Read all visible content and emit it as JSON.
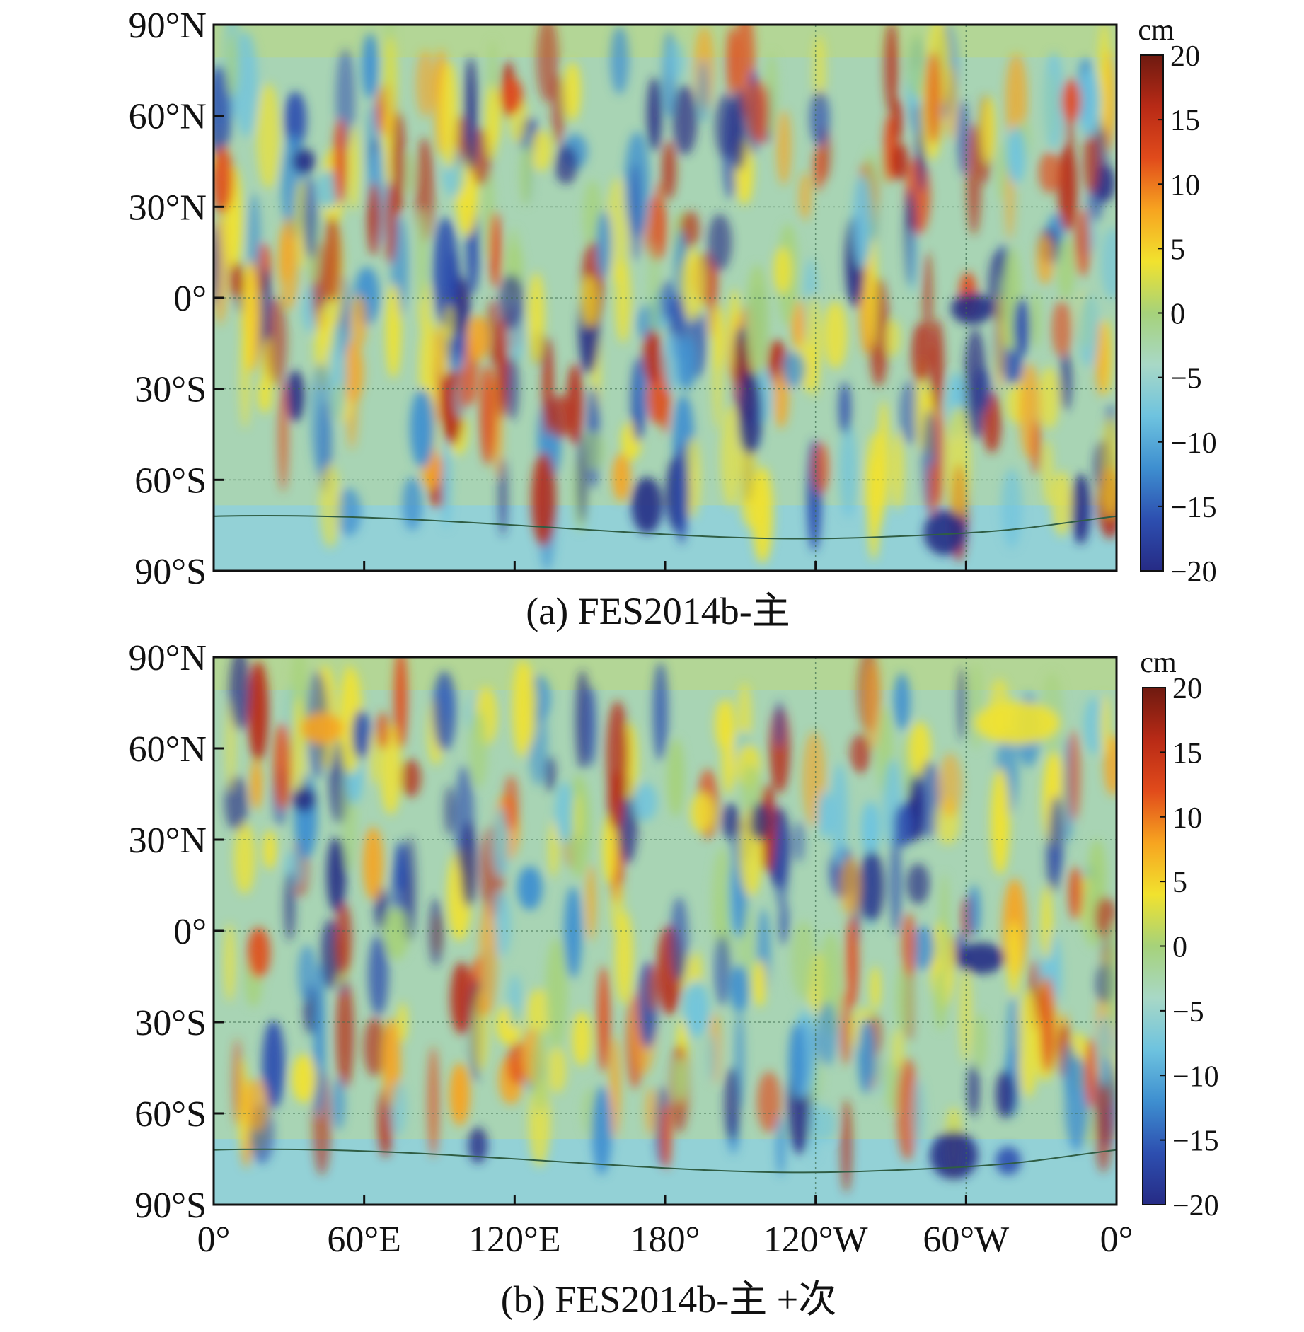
{
  "chart_data": [
    {
      "type": "heatmap",
      "caption": "(a) FES2014b-主",
      "colorbar": {
        "unit": "cm",
        "range": [
          -20,
          20
        ],
        "ticks": [
          "20",
          "15",
          "10",
          "5",
          "0",
          "−5",
          "−10",
          "−15",
          "−20"
        ],
        "colormap": [
          "#262b85",
          "#2d4fb0",
          "#3e8fd0",
          "#6ec3df",
          "#a8d8c6",
          "#a6d27a",
          "#f1e22e",
          "#f7a420",
          "#e14b1b",
          "#b82a16",
          "#6e1a10"
        ]
      },
      "yticks": [
        "90°N",
        "60°N",
        "30°N",
        "0°",
        "30°S",
        "60°S",
        "90°S"
      ],
      "xticks": [],
      "field": {
        "background": "#a8d4b4",
        "variant": "a"
      }
    },
    {
      "type": "heatmap",
      "caption": "(b) FES2014b-主 +次",
      "colorbar": {
        "unit": "cm",
        "range": [
          -20,
          20
        ],
        "ticks": [
          "20",
          "15",
          "10",
          "5",
          "0",
          "−5",
          "−10",
          "−15",
          "−20"
        ],
        "colormap": [
          "#262b85",
          "#2d4fb0",
          "#3e8fd0",
          "#6ec3df",
          "#a8d8c6",
          "#a6d27a",
          "#f1e22e",
          "#f7a420",
          "#e14b1b",
          "#b82a16",
          "#6e1a10"
        ]
      },
      "yticks": [
        "90°N",
        "60°N",
        "30°N",
        "0°",
        "30°S",
        "60°S",
        "90°S"
      ],
      "xticks": [
        "0°",
        "60°E",
        "120°E",
        "180°",
        "120°W",
        "60°W",
        "0°"
      ],
      "field": {
        "background": "#a8d4b4",
        "variant": "b"
      }
    }
  ]
}
